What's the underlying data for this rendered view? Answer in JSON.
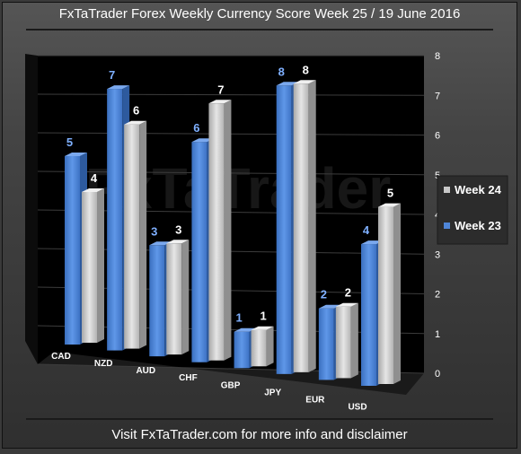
{
  "page": {
    "title": "FxTaTrader Forex Weekly Currency Score Week 25 / 19 June 2016",
    "footer": "Visit FxTaTrader.com for more info and disclaimer",
    "watermark": "FxTaTrader"
  },
  "colors": {
    "week23": "#4f86d8",
    "week24": "#c8c8c8",
    "week23_label": "#7fb0ff",
    "week24_label": "#ffffff",
    "wall": "#000000"
  },
  "chart_data": {
    "type": "bar",
    "title": "",
    "xlabel": "",
    "ylabel": "",
    "ylim": [
      0,
      8
    ],
    "yticks": [
      "0",
      "1",
      "2",
      "3",
      "4",
      "5",
      "6",
      "7",
      "8"
    ],
    "categories": [
      "CAD",
      "NZD",
      "AUD",
      "CHF",
      "GBP",
      "JPY",
      "EUR",
      "USD"
    ],
    "series": [
      {
        "name": "Week 23",
        "values": [
          5,
          7,
          3,
          6,
          1,
          8,
          2,
          4
        ]
      },
      {
        "name": "Week 24",
        "values": [
          4,
          6,
          3,
          7,
          1,
          8,
          2,
          5
        ]
      }
    ],
    "legend": {
      "position": "right",
      "entries": [
        "Week 24",
        "Week 23"
      ]
    },
    "grid": true
  }
}
